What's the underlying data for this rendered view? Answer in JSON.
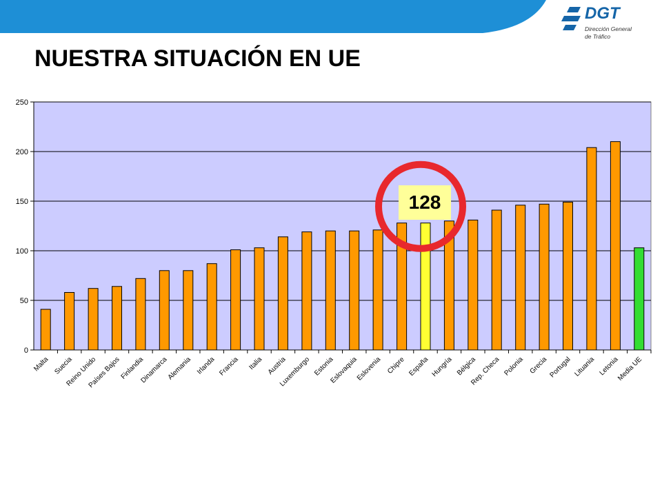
{
  "header": {
    "title": "NUESTRA SITUACIÓN EN UE",
    "logo": {
      "name": "DGT",
      "subtitle_line1": "Dirección General",
      "subtitle_line2": "de Tráfico"
    }
  },
  "colors": {
    "plot_background": "#ccccff",
    "bar_default": "#ff9900",
    "bar_highlight": "#ffff33",
    "bar_average": "#33dd33",
    "callout_ring": "#e8282d",
    "banner": "#1e8fd6"
  },
  "callout": {
    "label": "128",
    "target": "España"
  },
  "chart_data": {
    "type": "bar",
    "title": "",
    "xlabel": "",
    "ylabel": "",
    "ylim": [
      0,
      250
    ],
    "yticks": [
      0,
      50,
      100,
      150,
      200,
      250
    ],
    "grid": true,
    "legend": "none",
    "categories": [
      "Malta",
      "Suecia",
      "Reino Unido",
      "Países Bajos",
      "Finlandia",
      "Dinamarca",
      "Alemania",
      "Irlanda",
      "Francia",
      "Italia",
      "Austria",
      "Luxemburgo",
      "Estonia",
      "Eslovaquia",
      "Eslovenia",
      "Chipre",
      "España",
      "Hungría",
      "Bélgica",
      "Rep. Checa",
      "Polonia",
      "Grecia",
      "Portugal",
      "Lituania",
      "Letonia",
      "Media UE"
    ],
    "values": [
      41,
      58,
      62,
      64,
      72,
      80,
      80,
      87,
      101,
      103,
      114,
      119,
      120,
      120,
      121,
      128,
      128,
      130,
      131,
      141,
      146,
      147,
      149,
      204,
      210,
      103
    ],
    "highlight": {
      "España": "bar_highlight",
      "Media UE": "bar_average"
    }
  }
}
